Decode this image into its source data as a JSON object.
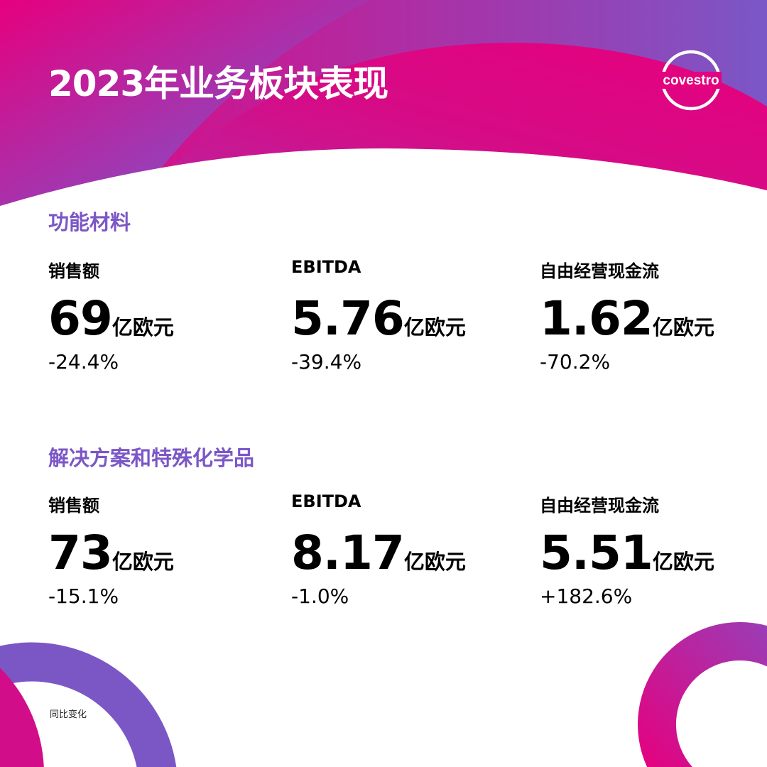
{
  "header": {
    "title": "2023年业务板块表现",
    "logo_text": "covestro"
  },
  "colors": {
    "magenta": "#e6007e",
    "purple": "#7b57c6"
  },
  "sections": [
    {
      "title": "功能材料",
      "metrics": [
        {
          "label": "销售额",
          "value": "69",
          "unit": "亿欧元",
          "change": "-24.4%"
        },
        {
          "label": "EBITDA",
          "value": "5.76",
          "unit": "亿欧元",
          "change": "-39.4%"
        },
        {
          "label": "自由经营现金流",
          "value": "1.62",
          "unit": "亿欧元",
          "change": "-70.2%"
        }
      ]
    },
    {
      "title": "解决方案和特殊化学品",
      "metrics": [
        {
          "label": "销售额",
          "value": "73",
          "unit": "亿欧元",
          "change": "-15.1%"
        },
        {
          "label": "EBITDA",
          "value": "8.17",
          "unit": "亿欧元",
          "change": "-1.0%"
        },
        {
          "label": "自由经营现金流",
          "value": "5.51",
          "unit": "亿欧元",
          "change": "+182.6%"
        }
      ]
    }
  ],
  "footnote": "同比变化"
}
